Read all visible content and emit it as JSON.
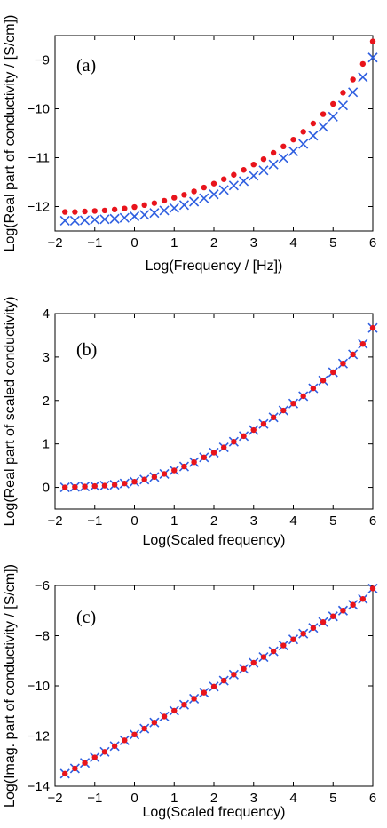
{
  "chart_data": [
    {
      "type": "scatter",
      "panel_label": "(a)",
      "xlabel": "Log(Frequency / [Hz])",
      "ylabel": "Log(Real part of conductivity / [S/cm])",
      "xlim": [
        -2,
        6
      ],
      "ylim": [
        -12.5,
        -8.5
      ],
      "xticks": [
        -2,
        -1,
        0,
        1,
        2,
        3,
        4,
        5,
        6
      ],
      "yticks": [
        -12,
        -11,
        -10,
        -9
      ],
      "tick_labels_x": [
        "−2",
        "−1",
        "0",
        "1",
        "2",
        "3",
        "4",
        "5",
        "6"
      ],
      "tick_labels_y": [
        "−12",
        "−11",
        "−10",
        "−9"
      ],
      "grid": false,
      "series": [
        {
          "marker": "x",
          "color": "#2f5fe0",
          "x": [
            -1.75,
            -1.5,
            -1.25,
            -1.0,
            -0.75,
            -0.5,
            -0.25,
            0.0,
            0.25,
            0.5,
            0.75,
            1.0,
            1.25,
            1.5,
            1.75,
            2.0,
            2.25,
            2.5,
            2.75,
            3.0,
            3.25,
            3.5,
            3.75,
            4.0,
            4.25,
            4.5,
            4.75,
            5.0,
            5.25,
            5.5,
            5.75,
            6.0
          ],
          "y": [
            -12.29,
            -12.29,
            -12.28,
            -12.27,
            -12.26,
            -12.25,
            -12.23,
            -12.2,
            -12.17,
            -12.13,
            -12.08,
            -12.03,
            -11.97,
            -11.9,
            -11.83,
            -11.75,
            -11.66,
            -11.57,
            -11.48,
            -11.37,
            -11.26,
            -11.14,
            -11.01,
            -10.87,
            -10.72,
            -10.55,
            -10.37,
            -10.16,
            -9.93,
            -9.66,
            -9.35,
            -8.95
          ]
        },
        {
          "marker": "dot",
          "color": "#e8141c",
          "x": [
            -1.75,
            -1.5,
            -1.25,
            -1.0,
            -0.75,
            -0.5,
            -0.25,
            0.0,
            0.25,
            0.5,
            0.75,
            1.0,
            1.25,
            1.5,
            1.75,
            2.0,
            2.25,
            2.5,
            2.75,
            3.0,
            3.25,
            3.5,
            3.75,
            4.0,
            4.25,
            4.5,
            4.75,
            5.0,
            5.25,
            5.5,
            5.75,
            6.0
          ],
          "y": [
            -12.11,
            -12.11,
            -12.1,
            -12.09,
            -12.08,
            -12.06,
            -12.04,
            -12.01,
            -11.97,
            -11.93,
            -11.88,
            -11.82,
            -11.76,
            -11.69,
            -11.61,
            -11.53,
            -11.44,
            -11.35,
            -11.25,
            -11.14,
            -11.03,
            -10.9,
            -10.77,
            -10.63,
            -10.47,
            -10.3,
            -10.11,
            -9.9,
            -9.67,
            -9.4,
            -9.08,
            -8.62
          ]
        }
      ]
    },
    {
      "type": "scatter",
      "panel_label": "(b)",
      "xlabel": "Log(Scaled frequency)",
      "ylabel": "Log(Real part of scaled conductivity)",
      "xlim": [
        -2,
        6
      ],
      "ylim": [
        -0.5,
        4
      ],
      "xticks": [
        -2,
        -1,
        0,
        1,
        2,
        3,
        4,
        5,
        6
      ],
      "yticks": [
        0,
        1,
        2,
        3,
        4
      ],
      "tick_labels_x": [
        "−2",
        "−1",
        "0",
        "1",
        "2",
        "3",
        "4",
        "5",
        "6"
      ],
      "tick_labels_y": [
        "0",
        "1",
        "2",
        "3",
        "4"
      ],
      "grid": false,
      "series": [
        {
          "marker": "x",
          "color": "#2f5fe0",
          "x": [
            -1.75,
            -1.5,
            -1.25,
            -1.0,
            -0.75,
            -0.5,
            -0.25,
            0.0,
            0.25,
            0.5,
            0.75,
            1.0,
            1.25,
            1.5,
            1.75,
            2.0,
            2.25,
            2.5,
            2.75,
            3.0,
            3.25,
            3.5,
            3.75,
            4.0,
            4.25,
            4.5,
            4.75,
            5.0,
            5.25,
            5.5,
            5.75,
            6.0
          ],
          "y": [
            0.0,
            0.01,
            0.02,
            0.03,
            0.04,
            0.06,
            0.09,
            0.13,
            0.18,
            0.24,
            0.31,
            0.39,
            0.48,
            0.58,
            0.69,
            0.8,
            0.92,
            1.05,
            1.18,
            1.32,
            1.46,
            1.61,
            1.77,
            1.93,
            2.1,
            2.28,
            2.46,
            2.65,
            2.85,
            3.06,
            3.3,
            3.67
          ]
        },
        {
          "marker": "dot",
          "color": "#e8141c",
          "x": [
            -1.75,
            -1.5,
            -1.25,
            -1.0,
            -0.75,
            -0.5,
            -0.25,
            0.0,
            0.25,
            0.5,
            0.75,
            1.0,
            1.25,
            1.5,
            1.75,
            2.0,
            2.25,
            2.5,
            2.75,
            3.0,
            3.25,
            3.5,
            3.75,
            4.0,
            4.25,
            4.5,
            4.75,
            5.0,
            5.25,
            5.5,
            5.75,
            6.0
          ],
          "y": [
            0.0,
            0.01,
            0.02,
            0.03,
            0.04,
            0.06,
            0.09,
            0.13,
            0.18,
            0.24,
            0.31,
            0.39,
            0.48,
            0.58,
            0.69,
            0.8,
            0.92,
            1.05,
            1.18,
            1.32,
            1.46,
            1.61,
            1.77,
            1.93,
            2.1,
            2.28,
            2.46,
            2.65,
            2.85,
            3.06,
            3.3,
            3.67
          ]
        }
      ]
    },
    {
      "type": "scatter",
      "panel_label": "(c)",
      "xlabel": "Log(Scaled frequency)",
      "ylabel": "Log(Imag. part of conductivity / [S/cm])",
      "xlim": [
        -2,
        6
      ],
      "ylim": [
        -14,
        -6
      ],
      "xticks": [
        -2,
        -1,
        0,
        1,
        2,
        3,
        4,
        5,
        6
      ],
      "yticks": [
        -14,
        -12,
        -10,
        -8,
        -6
      ],
      "tick_labels_x": [
        "−2",
        "−1",
        "0",
        "1",
        "2",
        "3",
        "4",
        "5",
        "6"
      ],
      "tick_labels_y": [
        "−14",
        "−12",
        "−10",
        "−8",
        "−6"
      ],
      "grid": false,
      "series": [
        {
          "marker": "x",
          "color": "#2f5fe0",
          "x": [
            -1.75,
            -1.5,
            -1.25,
            -1.0,
            -0.75,
            -0.5,
            -0.25,
            0.0,
            0.25,
            0.5,
            0.75,
            1.0,
            1.25,
            1.5,
            1.75,
            2.0,
            2.25,
            2.5,
            2.75,
            3.0,
            3.25,
            3.5,
            3.75,
            4.0,
            4.25,
            4.5,
            4.75,
            5.0,
            5.25,
            5.5,
            5.75,
            6.0
          ],
          "y": [
            -13.5,
            -13.29,
            -13.07,
            -12.85,
            -12.63,
            -12.4,
            -12.17,
            -11.94,
            -11.7,
            -11.46,
            -11.22,
            -10.99,
            -10.75,
            -10.51,
            -10.27,
            -10.03,
            -9.79,
            -9.55,
            -9.32,
            -9.08,
            -8.85,
            -8.62,
            -8.39,
            -8.15,
            -7.92,
            -7.69,
            -7.46,
            -7.23,
            -7.0,
            -6.77,
            -6.54,
            -6.12
          ]
        },
        {
          "marker": "dot",
          "color": "#e8141c",
          "x": [
            -1.75,
            -1.5,
            -1.25,
            -1.0,
            -0.75,
            -0.5,
            -0.25,
            0.0,
            0.25,
            0.5,
            0.75,
            1.0,
            1.25,
            1.5,
            1.75,
            2.0,
            2.25,
            2.5,
            2.75,
            3.0,
            3.25,
            3.5,
            3.75,
            4.0,
            4.25,
            4.5,
            4.75,
            5.0,
            5.25,
            5.5,
            5.75,
            6.0
          ],
          "y": [
            -13.5,
            -13.29,
            -13.07,
            -12.85,
            -12.63,
            -12.4,
            -12.17,
            -11.94,
            -11.7,
            -11.46,
            -11.22,
            -10.99,
            -10.75,
            -10.51,
            -10.27,
            -10.03,
            -9.79,
            -9.55,
            -9.32,
            -9.08,
            -8.85,
            -8.62,
            -8.39,
            -8.15,
            -7.92,
            -7.69,
            -7.46,
            -7.23,
            -7.0,
            -6.77,
            -6.54,
            -6.12
          ]
        }
      ]
    }
  ]
}
